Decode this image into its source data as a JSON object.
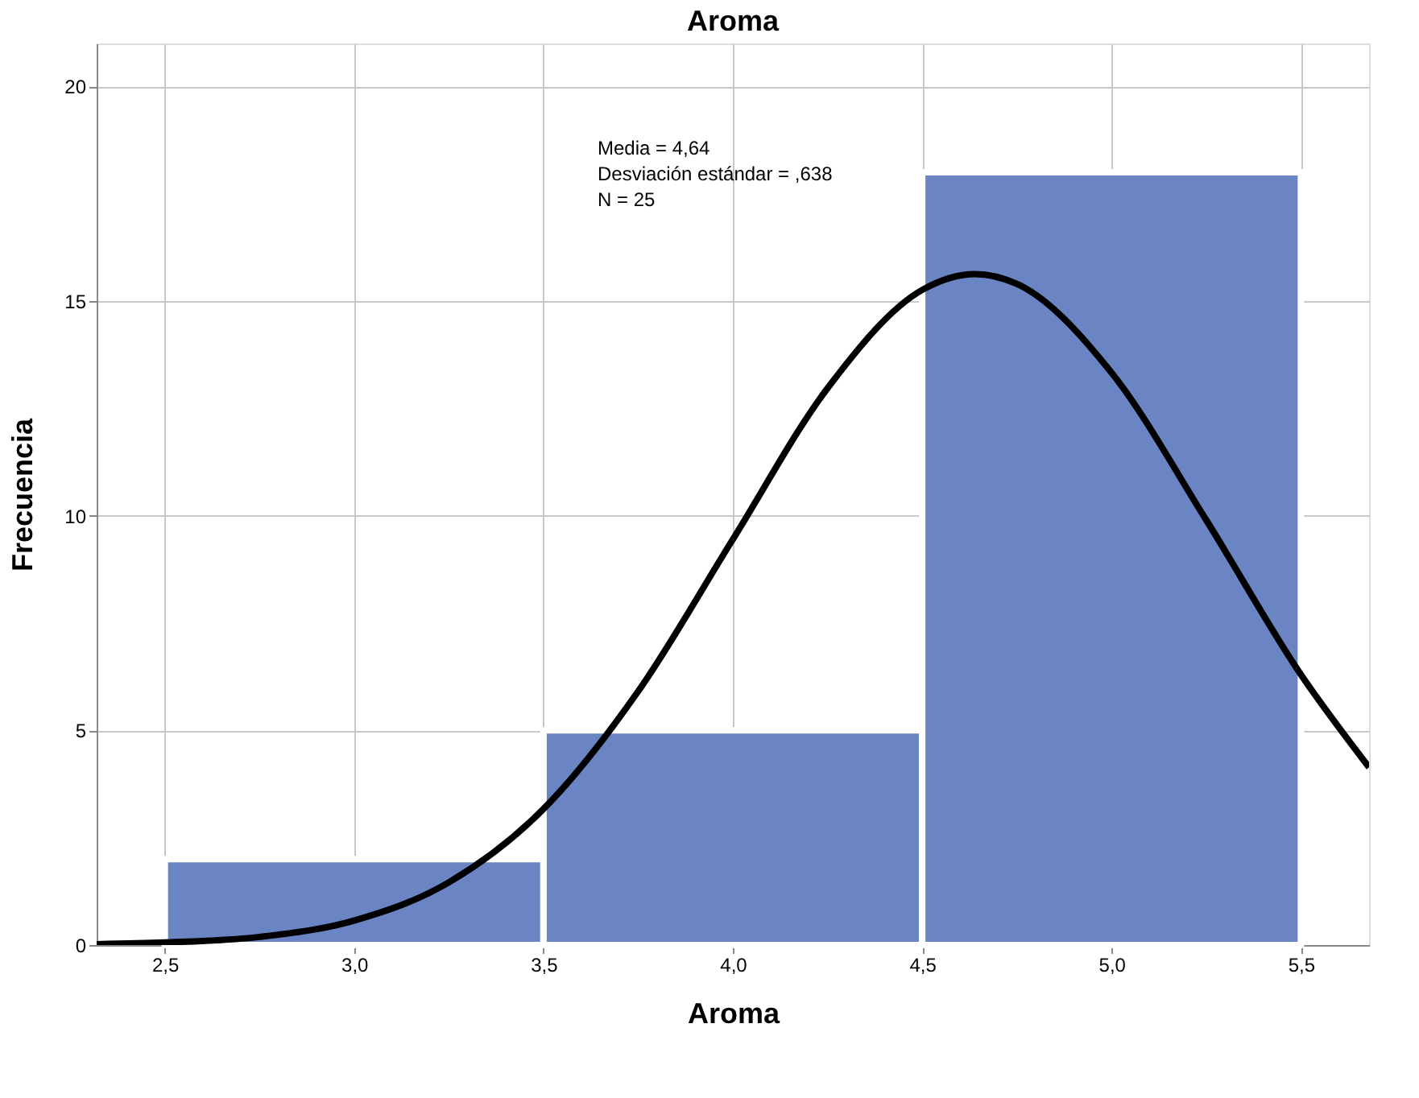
{
  "chart_data": {
    "type": "histogram",
    "title": "Aroma",
    "xlabel": "Aroma",
    "ylabel": "Frecuencia",
    "bins": [
      2.5,
      3.5,
      4.5,
      5.5
    ],
    "values": [
      2,
      5,
      18
    ],
    "color": "#6a84c4",
    "series": [
      {
        "type": "line",
        "color": "#000000",
        "x": [
          2.32,
          2.5,
          2.75,
          3.0,
          3.25,
          3.5,
          3.75,
          4.0,
          4.25,
          4.5,
          4.64,
          4.75,
          5.0,
          5.25,
          5.5,
          5.68
        ],
        "values": [
          0.02,
          0.06,
          0.19,
          0.57,
          1.46,
          3.17,
          5.91,
          9.45,
          12.97,
          15.26,
          15.63,
          15.4,
          13.33,
          9.9,
          6.3,
          4.14
        ]
      }
    ],
    "xlim": [
      2.32,
      5.68
    ],
    "ylim": [
      0,
      21
    ],
    "xticks": [
      {
        "value": 2.5,
        "label": "2,5"
      },
      {
        "value": 3.0,
        "label": "3,0"
      },
      {
        "value": 3.5,
        "label": "3,5"
      },
      {
        "value": 4.0,
        "label": "4,0"
      },
      {
        "value": 4.5,
        "label": "4,5"
      },
      {
        "value": 5.0,
        "label": "5,0"
      },
      {
        "value": 5.5,
        "label": "5,5"
      }
    ],
    "yticks": [
      0,
      5,
      10,
      15,
      20
    ],
    "annotations": [
      "Media = 4,64",
      "Desviación estándar = ,638",
      "N = 25"
    ],
    "grid": true,
    "line_style": "solid",
    "marker": "none"
  }
}
